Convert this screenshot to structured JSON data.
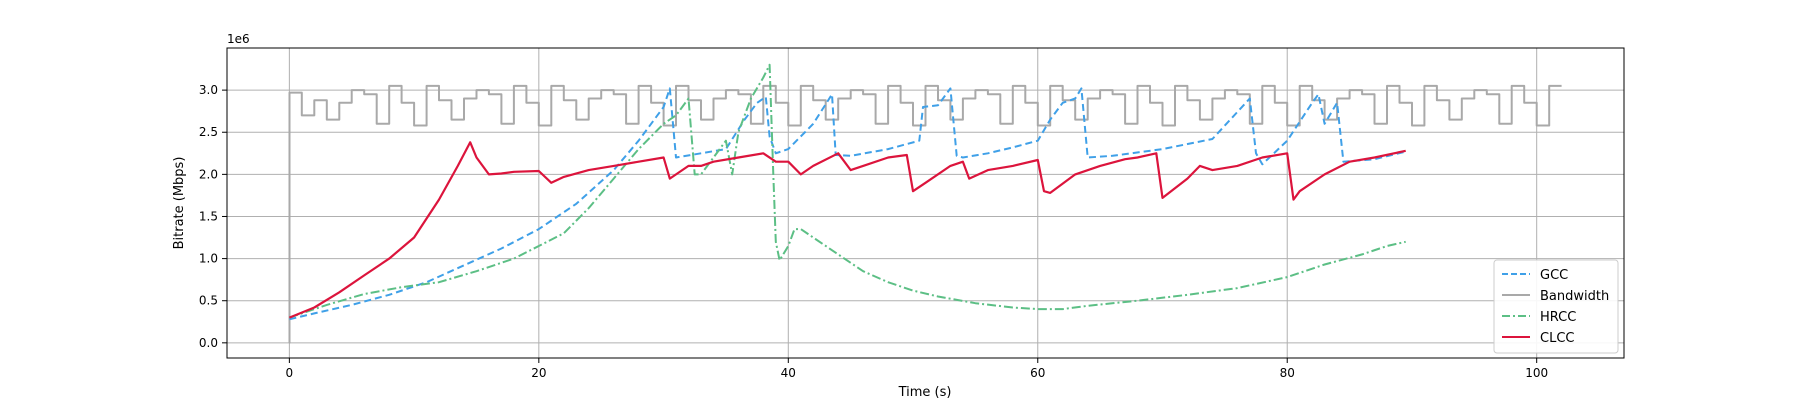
{
  "chart_data": {
    "type": "line",
    "title": "",
    "xlabel": "Time (s)",
    "ylabel": "Bitrate (Mbps)",
    "y_offset_text": "1e6",
    "xlim": [
      -5,
      107
    ],
    "ylim": [
      -0.18,
      3.5
    ],
    "xticks": [
      0,
      20,
      40,
      60,
      80,
      100
    ],
    "yticks": [
      0.0,
      0.5,
      1.0,
      1.5,
      2.0,
      2.5,
      3.0
    ],
    "xtick_labels": [
      "0",
      "20",
      "40",
      "60",
      "80",
      "100"
    ],
    "ytick_labels": [
      "0.0",
      "0.5",
      "1.0",
      "1.5",
      "2.0",
      "2.5",
      "3.0"
    ],
    "grid": true,
    "legend": {
      "position": "lower-right",
      "entries": [
        {
          "label": "GCC",
          "color": "#3fa0e8",
          "dash": "dashed"
        },
        {
          "label": "Bandwidth",
          "color": "#a9a9a9",
          "dash": "solid"
        },
        {
          "label": "HRCC",
          "color": "#5cbf85",
          "dash": "dashdot"
        },
        {
          "label": "CLCC",
          "color": "#dc143c",
          "dash": "solid"
        }
      ]
    },
    "series": [
      {
        "name": "GCC",
        "color": "#3fa0e8",
        "style": "dashed",
        "x": [
          0,
          2,
          5,
          8,
          11,
          14,
          17,
          20,
          23,
          26,
          28,
          30,
          30.5,
          31,
          33,
          35,
          36.5,
          37.5,
          38.2,
          38.5,
          39,
          40,
          42,
          43.5,
          43.8,
          45,
          48,
          50.5,
          50.8,
          52,
          53,
          53.5,
          54,
          56,
          58,
          60,
          61,
          62,
          63,
          63.5,
          64,
          66,
          70,
          74,
          77,
          77.5,
          78,
          80,
          82,
          82.5,
          83,
          84,
          84.5,
          87,
          89.5
        ],
        "y": [
          0.28,
          0.35,
          0.45,
          0.57,
          0.72,
          0.92,
          1.12,
          1.35,
          1.65,
          2.05,
          2.4,
          2.8,
          3.02,
          2.2,
          2.25,
          2.3,
          2.65,
          2.85,
          2.92,
          2.45,
          2.25,
          2.3,
          2.6,
          2.95,
          2.23,
          2.22,
          2.3,
          2.4,
          2.8,
          2.82,
          3.02,
          2.22,
          2.2,
          2.25,
          2.32,
          2.4,
          2.65,
          2.85,
          2.9,
          3.02,
          2.2,
          2.22,
          2.3,
          2.42,
          2.9,
          2.25,
          2.12,
          2.4,
          2.85,
          2.95,
          2.6,
          2.85,
          2.15,
          2.18,
          2.27
        ]
      },
      {
        "name": "Bandwidth",
        "color": "#a9a9a9",
        "style": "step",
        "x": [
          0,
          0.01,
          1,
          2,
          3,
          4,
          5,
          6,
          7,
          8,
          9,
          10,
          11,
          12,
          13,
          14,
          15,
          16,
          17,
          18,
          19,
          20,
          21,
          22,
          23,
          24,
          25,
          26,
          27,
          28,
          29,
          30,
          31,
          32,
          33,
          34,
          35,
          36,
          37,
          38,
          39,
          40,
          41,
          42,
          43,
          44,
          45,
          46,
          47,
          48,
          49,
          50,
          51,
          52,
          53,
          54,
          55,
          56,
          57,
          58,
          59,
          60,
          61,
          62,
          63,
          64,
          65,
          66,
          67,
          68,
          69,
          70,
          71,
          72,
          73,
          74,
          75,
          76,
          77,
          78,
          79,
          80,
          81,
          82,
          83,
          84,
          85,
          86,
          87,
          88,
          89,
          90,
          91,
          92,
          93,
          94,
          95,
          96,
          97,
          98,
          99,
          100,
          101,
          102
        ],
        "y": [
          0.0,
          2.97,
          2.7,
          2.88,
          2.65,
          2.85,
          3.0,
          2.95,
          2.6,
          3.05,
          2.85,
          2.58,
          3.05,
          2.88,
          2.65,
          2.9,
          3.0,
          2.95,
          2.6,
          3.05,
          2.85,
          2.58,
          3.05,
          2.88,
          2.65,
          2.9,
          3.0,
          2.95,
          2.6,
          3.05,
          2.85,
          2.58,
          3.05,
          2.88,
          2.65,
          2.9,
          3.0,
          2.95,
          2.6,
          3.05,
          2.85,
          2.58,
          3.05,
          2.88,
          2.65,
          2.9,
          3.0,
          2.95,
          2.6,
          3.05,
          2.85,
          2.58,
          3.05,
          2.88,
          2.65,
          2.9,
          3.0,
          2.95,
          2.6,
          3.05,
          2.85,
          2.58,
          3.05,
          2.88,
          2.65,
          2.9,
          3.0,
          2.95,
          2.6,
          3.05,
          2.85,
          2.58,
          3.05,
          2.88,
          2.65,
          2.9,
          3.0,
          2.95,
          2.6,
          3.05,
          2.85,
          2.58,
          3.05,
          2.88,
          2.65,
          2.9,
          3.0,
          2.95,
          2.6,
          3.05,
          2.85,
          2.58,
          3.05,
          2.88,
          2.65,
          2.9,
          3.0,
          2.95,
          2.6,
          3.05,
          2.85,
          2.58,
          3.05,
          3.05
        ]
      },
      {
        "name": "HRCC",
        "color": "#5cbf85",
        "style": "dashdot",
        "x": [
          0,
          3,
          6,
          9,
          12,
          15,
          18,
          20,
          22,
          24,
          26,
          28,
          30,
          31,
          32,
          32.5,
          33,
          34,
          35,
          35.5,
          36,
          37,
          38,
          38.5,
          38.8,
          39,
          39.3,
          40,
          40.5,
          41,
          42,
          44,
          46,
          48,
          50,
          52,
          55,
          58,
          60,
          62,
          64,
          68,
          72,
          76,
          80,
          83,
          86,
          88,
          89.5
        ],
        "y": [
          0.3,
          0.45,
          0.58,
          0.66,
          0.72,
          0.85,
          1.0,
          1.15,
          1.3,
          1.6,
          1.95,
          2.3,
          2.6,
          2.7,
          2.9,
          2.0,
          2.0,
          2.2,
          2.4,
          2.0,
          2.5,
          2.9,
          3.15,
          3.3,
          2.0,
          1.2,
          0.98,
          1.15,
          1.35,
          1.35,
          1.25,
          1.05,
          0.85,
          0.72,
          0.62,
          0.55,
          0.47,
          0.42,
          0.4,
          0.4,
          0.44,
          0.5,
          0.57,
          0.65,
          0.78,
          0.93,
          1.05,
          1.15,
          1.2
        ]
      },
      {
        "name": "CLCC",
        "color": "#dc143c",
        "style": "solid",
        "x": [
          0,
          2,
          4,
          6,
          8,
          10,
          12,
          13.5,
          14.5,
          15,
          16,
          17,
          18,
          20,
          21,
          22,
          24,
          26,
          28,
          30,
          30.5,
          32,
          33,
          34,
          36,
          38,
          39,
          40,
          41,
          42,
          44,
          45,
          46,
          48,
          49.5,
          50,
          51,
          53,
          54,
          54.5,
          56,
          58,
          60,
          60.5,
          61,
          63,
          65,
          67,
          68,
          69.5,
          70,
          72,
          73,
          74,
          76,
          78,
          80,
          80.5,
          81,
          83,
          85,
          87,
          89.5
        ],
        "y": [
          0.3,
          0.42,
          0.6,
          0.8,
          1.0,
          1.25,
          1.7,
          2.1,
          2.38,
          2.2,
          2.0,
          2.01,
          2.03,
          2.04,
          1.9,
          1.97,
          2.05,
          2.1,
          2.15,
          2.2,
          1.95,
          2.1,
          2.1,
          2.15,
          2.2,
          2.25,
          2.15,
          2.15,
          2.0,
          2.1,
          2.25,
          2.05,
          2.1,
          2.2,
          2.23,
          1.8,
          1.9,
          2.1,
          2.15,
          1.95,
          2.05,
          2.1,
          2.17,
          1.8,
          1.78,
          2.0,
          2.1,
          2.18,
          2.2,
          2.25,
          1.72,
          1.95,
          2.1,
          2.05,
          2.1,
          2.2,
          2.25,
          1.7,
          1.8,
          2.0,
          2.15,
          2.2,
          2.28
        ]
      }
    ]
  }
}
